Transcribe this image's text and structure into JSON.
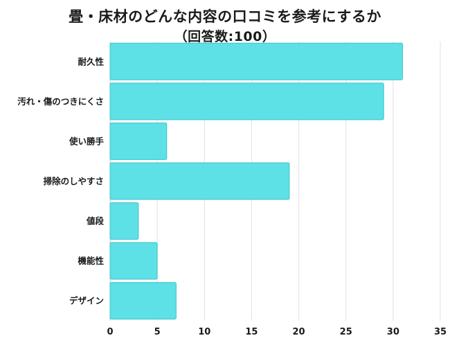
{
  "chart_data": {
    "type": "bar",
    "orientation": "horizontal",
    "title": "畳・床材のどんな内容の口コミを参考にするか",
    "subtitle": "（回答数:100）",
    "categories": [
      "耐久性",
      "汚れ・傷のつきにくさ",
      "使い勝手",
      "掃除のしやすさ",
      "値段",
      "機能性",
      "デザイン"
    ],
    "values": [
      31,
      29,
      6,
      19,
      3,
      5,
      7
    ],
    "xlim": [
      0,
      35
    ],
    "xticks": [
      0,
      5,
      10,
      15,
      20,
      25,
      30,
      35
    ],
    "grid": true,
    "bar_color": "#5de0e6",
    "bar_edge_color": "#3fc3cc"
  }
}
